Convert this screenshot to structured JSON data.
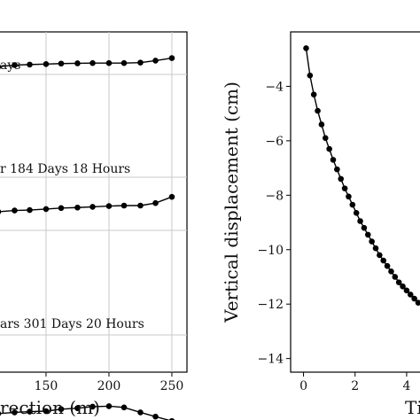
{
  "chart_data": [
    {
      "type": "line",
      "title": "",
      "xlabel": "rection (m)",
      "ylabel": "",
      "x_ticks": [
        150,
        200,
        250
      ],
      "xlim": [
        112,
        262
      ],
      "grid": true,
      "marker": "circle",
      "series": [
        {
          "annotation": "ays",
          "x": [
            112,
            125,
            137,
            150,
            162,
            175,
            187,
            200,
            212,
            225,
            237,
            250
          ],
          "y": [
            0.55,
            0.48,
            0.46,
            0.44,
            0.42,
            0.41,
            0.4,
            0.4,
            0.4,
            0.38,
            0.3,
            0.2
          ]
        },
        {
          "annotation": "r  184 Days  18 Hours",
          "x": [
            112,
            125,
            137,
            150,
            162,
            175,
            187,
            200,
            212,
            225,
            237,
            250
          ],
          "y": [
            2.25,
            2.2,
            2.18,
            2.14,
            2.1,
            2.08,
            2.05,
            2.02,
            2.0,
            2.0,
            1.9,
            1.65
          ]
        },
        {
          "annotation": "ars  301 Days  20 Hours",
          "x": [
            112,
            125,
            137,
            150,
            162,
            175,
            187,
            200,
            212,
            225,
            237,
            250
          ],
          "y": [
            4.1,
            4.05,
            4.02,
            4.0,
            3.92,
            3.88,
            3.82,
            3.8,
            3.85,
            4.05,
            4.22,
            4.4
          ]
        }
      ]
    },
    {
      "type": "scatter",
      "title": "",
      "xlabel": "Ti",
      "ylabel": "Vertical displacement (cm)",
      "x_ticks": [
        0,
        2,
        4
      ],
      "y_ticks": [
        -4,
        -6,
        -8,
        -10,
        -12,
        -14
      ],
      "xlim": [
        -0.5,
        5.0
      ],
      "ylim": [
        -14.5,
        -2.0
      ],
      "grid": false,
      "marker": "circle",
      "connected": true,
      "x": [
        0.1,
        0.25,
        0.4,
        0.55,
        0.7,
        0.85,
        1.0,
        1.15,
        1.3,
        1.45,
        1.6,
        1.75,
        1.9,
        2.05,
        2.2,
        2.35,
        2.5,
        2.65,
        2.8,
        2.95,
        3.1,
        3.25,
        3.4,
        3.55,
        3.7,
        3.85,
        4.0,
        4.15,
        4.3,
        4.45,
        4.6,
        4.75,
        4.9,
        5.05
      ],
      "y": [
        -2.6,
        -3.6,
        -4.3,
        -4.9,
        -5.4,
        -5.9,
        -6.3,
        -6.7,
        -7.05,
        -7.4,
        -7.75,
        -8.05,
        -8.35,
        -8.65,
        -8.95,
        -9.2,
        -9.45,
        -9.7,
        -9.95,
        -10.2,
        -10.4,
        -10.6,
        -10.8,
        -11.0,
        -11.2,
        -11.35,
        -11.5,
        -11.65,
        -11.8,
        -11.95,
        -12.05,
        -12.15,
        -12.2,
        -12.25
      ]
    }
  ]
}
